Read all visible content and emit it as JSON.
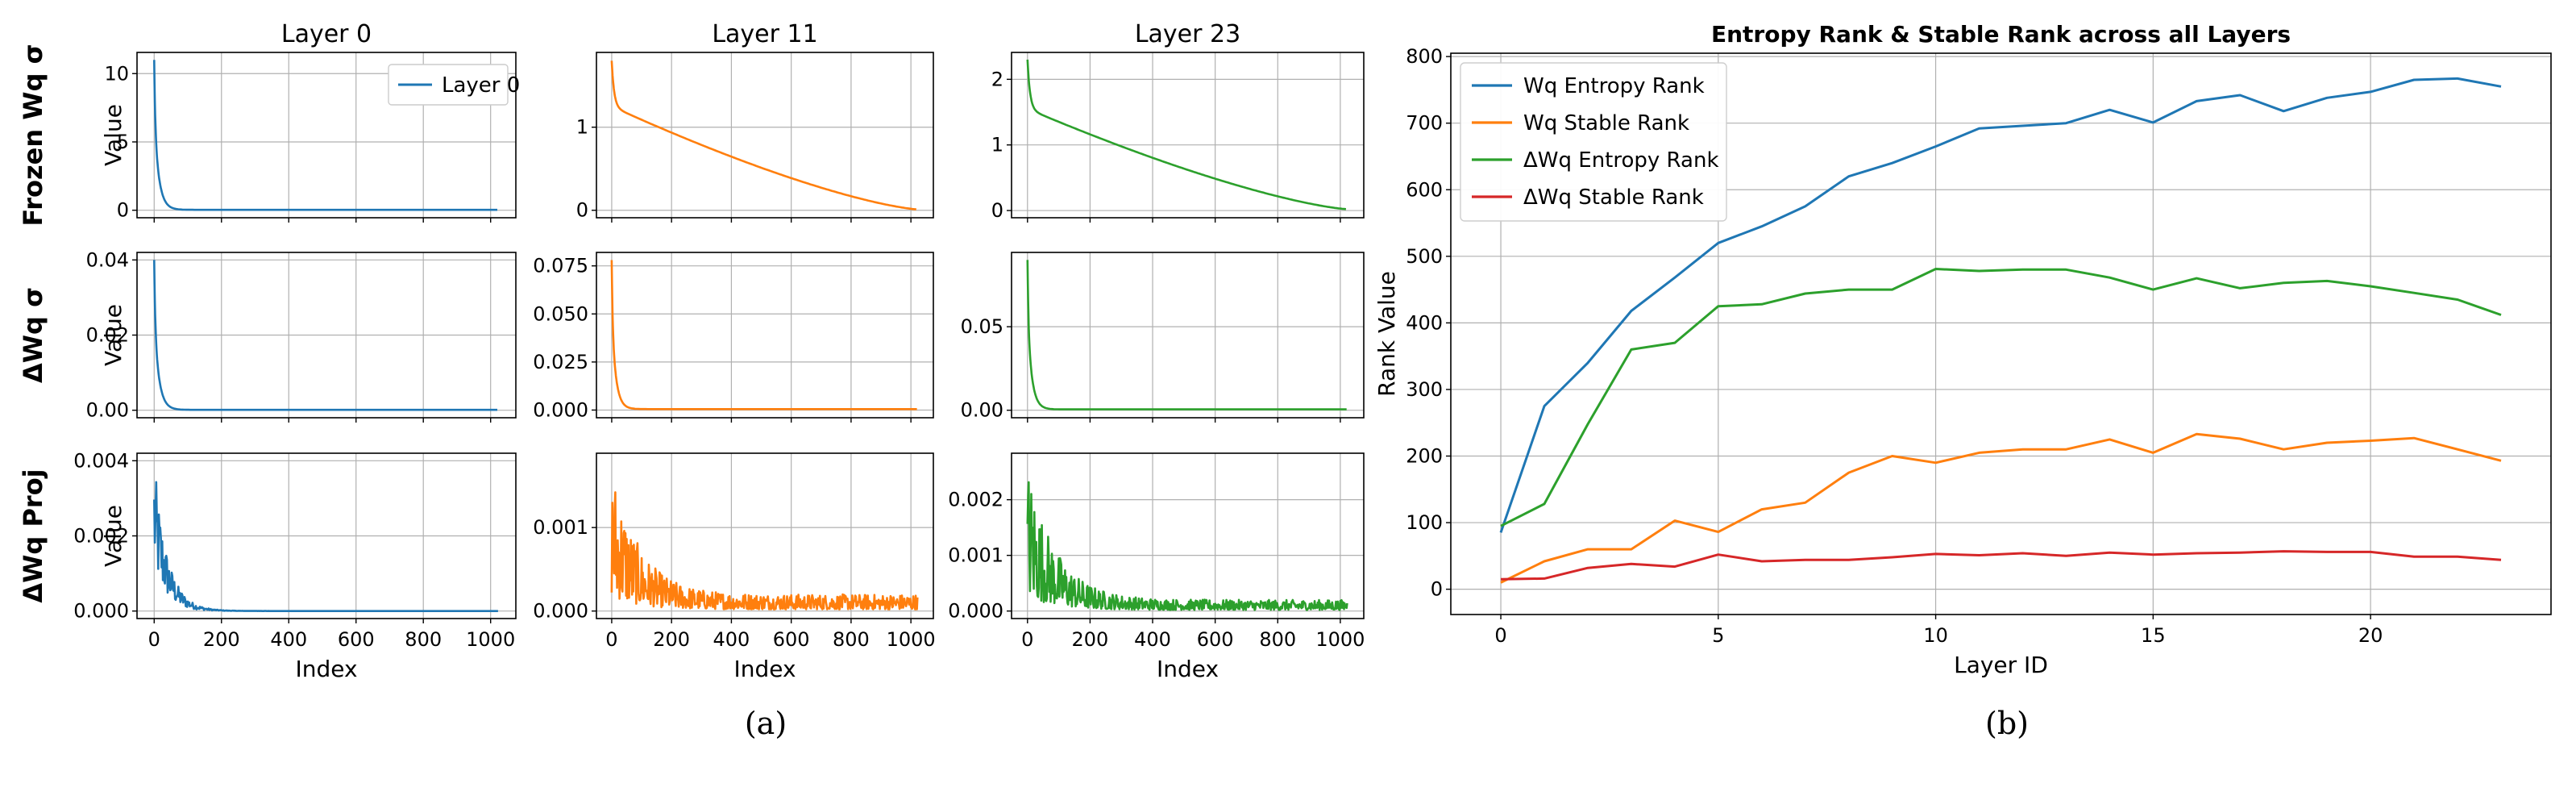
{
  "captions": [
    "(a)",
    "(b)"
  ],
  "colors": {
    "blue": "#1f77b4",
    "orange": "#ff7f0e",
    "green": "#2ca02c",
    "red": "#d62728"
  },
  "chart_data": [
    {
      "type": "line",
      "panel": "a",
      "column_titles": [
        "Layer 0",
        "Layer 11",
        "Layer 23"
      ],
      "row_titles": [
        "Frozen Wq σ",
        "ΔWq σ",
        "ΔWq Proj"
      ],
      "ylabel": "Value",
      "xlabel": "Index",
      "xlim": [
        0,
        1024
      ],
      "xticks": [
        "0",
        "200",
        "400",
        "600",
        "800",
        "1000"
      ],
      "grid": true,
      "legend": {
        "entries": [
          "Layer 0"
        ],
        "placement": "top-right",
        "panel": "row0-col0"
      },
      "panels": [
        {
          "row": 0,
          "col": 0,
          "color": "blue",
          "kind": "decay",
          "y0": 11.0,
          "yend": 0.03,
          "ylim": [
            -0.55,
            11.55
          ],
          "yticks": [
            0,
            5,
            10
          ],
          "ytick_labels": [
            "0",
            "5",
            "10"
          ]
        },
        {
          "row": 0,
          "col": 1,
          "color": "orange",
          "kind": "slowdecay",
          "y0": 1.8,
          "yknee": 1.25,
          "yend": 0.01,
          "ylim": [
            -0.09,
            1.9
          ],
          "yticks": [
            0,
            1
          ],
          "ytick_labels": [
            "0",
            "1"
          ]
        },
        {
          "row": 0,
          "col": 2,
          "color": "green",
          "kind": "slowdecay",
          "y0": 2.3,
          "yknee": 1.55,
          "yend": 0.02,
          "ylim": [
            -0.11,
            2.41
          ],
          "yticks": [
            0,
            1,
            2
          ],
          "ytick_labels": [
            "0",
            "1",
            "2"
          ]
        },
        {
          "row": 1,
          "col": 0,
          "color": "blue",
          "kind": "decay",
          "y0": 0.04,
          "yend": 0.0001,
          "ylim": [
            -0.002,
            0.042
          ],
          "yticks": [
            0,
            0.02,
            0.04
          ],
          "ytick_labels": [
            "0.00",
            "0.02",
            "0.04"
          ]
        },
        {
          "row": 1,
          "col": 1,
          "color": "orange",
          "kind": "decay",
          "y0": 0.078,
          "yend": 0.0005,
          "ylim": [
            -0.004,
            0.082
          ],
          "yticks": [
            0,
            0.025,
            0.05,
            0.075
          ],
          "ytick_labels": [
            "0.000",
            "0.025",
            "0.050",
            "0.075"
          ]
        },
        {
          "row": 1,
          "col": 2,
          "color": "green",
          "kind": "decay",
          "y0": 0.09,
          "yend": 0.0005,
          "ylim": [
            -0.0045,
            0.0945
          ],
          "yticks": [
            0,
            0.05
          ],
          "ytick_labels": [
            "0.00",
            "0.05"
          ]
        },
        {
          "row": 2,
          "col": 0,
          "color": "blue",
          "kind": "noise-decay",
          "y0": 0.004,
          "yend": 0.0,
          "ylim": [
            -0.0002,
            0.0042
          ],
          "yticks": [
            0,
            0.002,
            0.004
          ],
          "ytick_labels": [
            "0.000",
            "0.002",
            "0.004"
          ]
        },
        {
          "row": 2,
          "col": 1,
          "color": "orange",
          "kind": "noise",
          "y0": 0.0018,
          "yend": 0.0002,
          "ylim": [
            -9e-05,
            0.00189
          ],
          "yticks": [
            0,
            0.001
          ],
          "ytick_labels": [
            "0.000",
            "0.001"
          ]
        },
        {
          "row": 2,
          "col": 2,
          "color": "green",
          "kind": "noise",
          "y0": 0.0027,
          "yend": 0.0002,
          "ylim": [
            -0.000135,
            0.002835
          ],
          "yticks": [
            0,
            0.001,
            0.002
          ],
          "ytick_labels": [
            "0.000",
            "0.001",
            "0.002"
          ]
        }
      ]
    },
    {
      "type": "line",
      "panel": "b",
      "title": "Entropy Rank & Stable Rank across all Layers",
      "xlabel": "Layer ID",
      "ylabel": "Rank Value",
      "xlim": [
        -1.15,
        24.15
      ],
      "ylim": [
        -38,
        805
      ],
      "xticks": [
        0,
        5,
        10,
        15,
        20
      ],
      "yticks": [
        0,
        100,
        200,
        300,
        400,
        500,
        600,
        700,
        800
      ],
      "grid": true,
      "legend_placement": "top-left",
      "x": [
        0,
        1,
        2,
        3,
        4,
        5,
        6,
        7,
        8,
        9,
        10,
        11,
        12,
        13,
        14,
        15,
        16,
        17,
        18,
        19,
        20,
        21,
        22,
        23
      ],
      "series": [
        {
          "name": "Wq Entropy Rank",
          "color": "blue",
          "values": [
            85,
            275,
            340,
            418,
            468,
            520,
            545,
            575,
            620,
            640,
            665,
            692,
            696,
            700,
            720,
            701,
            733,
            742,
            718,
            738,
            747,
            765,
            767,
            755
          ]
        },
        {
          "name": "Wq Stable Rank",
          "color": "orange",
          "values": [
            10,
            42,
            60,
            60,
            103,
            86,
            120,
            130,
            175,
            200,
            190,
            205,
            210,
            210,
            225,
            205,
            233,
            226,
            210,
            220,
            223,
            227,
            210,
            193
          ]
        },
        {
          "name": "ΔWq Entropy Rank",
          "color": "green",
          "values": [
            95,
            128,
            248,
            360,
            370,
            425,
            428,
            444,
            450,
            450,
            481,
            478,
            480,
            480,
            468,
            450,
            467,
            452,
            460,
            463,
            455,
            445,
            435,
            412
          ]
        },
        {
          "name": "ΔWq Stable Rank",
          "color": "red",
          "values": [
            15,
            16,
            32,
            38,
            34,
            52,
            42,
            44,
            44,
            48,
            53,
            51,
            54,
            50,
            55,
            52,
            54,
            55,
            57,
            56,
            56,
            49,
            49,
            44
          ]
        }
      ]
    }
  ]
}
